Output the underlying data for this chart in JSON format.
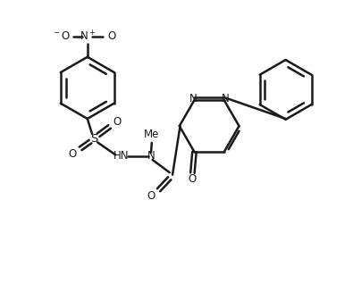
{
  "bg_color": "#ffffff",
  "bond_color": "#1a1a1a",
  "lw": 1.8,
  "figsize": [
    3.95,
    3.27
  ],
  "dpi": 100,
  "xlim": [
    0,
    9.5
  ],
  "ylim": [
    0,
    8.0
  ]
}
